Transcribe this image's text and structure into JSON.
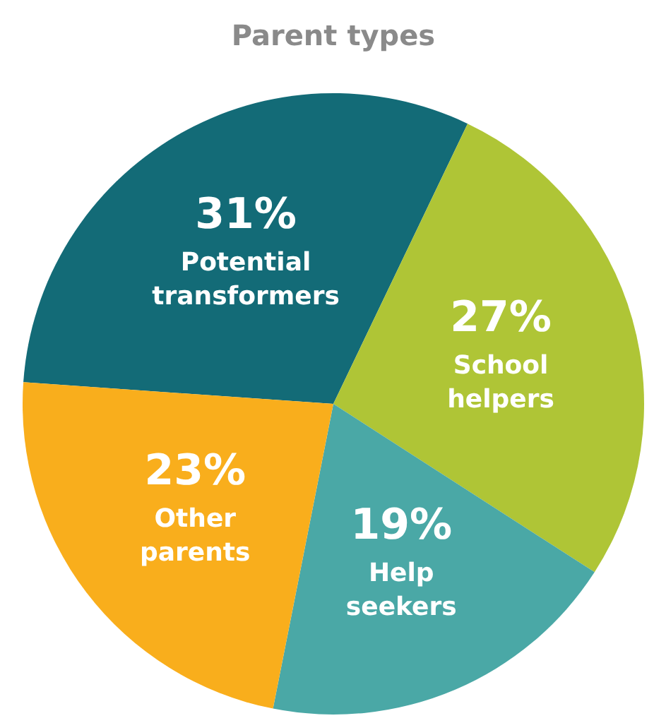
{
  "chart_data": {
    "type": "pie",
    "title": "Parent types",
    "categories": [
      "Potential transformers",
      "School helpers",
      "Help seekers",
      "Other parents"
    ],
    "values": [
      31,
      27,
      19,
      23
    ],
    "colors": [
      "#136b77",
      "#afc536",
      "#4aa8a6",
      "#f9ae1c"
    ],
    "value_labels": [
      "31%",
      "27%",
      "19%",
      "23%"
    ]
  }
}
